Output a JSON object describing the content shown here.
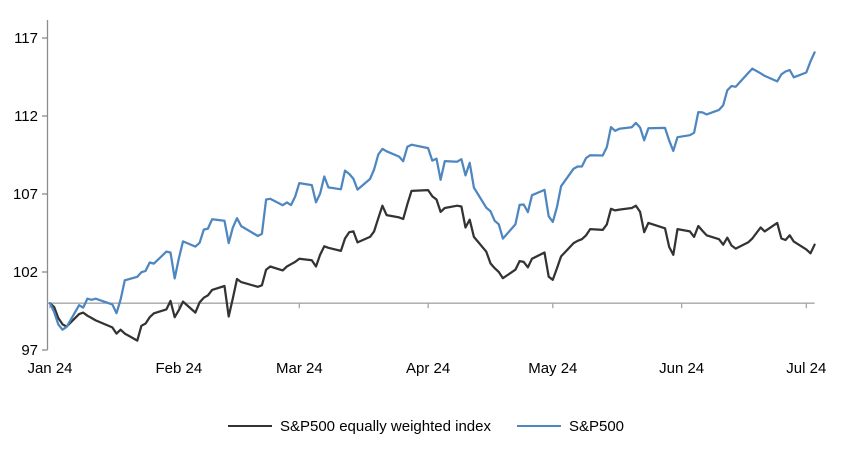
{
  "chart_data": {
    "type": "line",
    "title": "",
    "grid": "off",
    "legend_position": "bottom",
    "x_axis": {
      "tick_labels": [
        "Jan 24",
        "Feb 24",
        "Mar 24",
        "Apr 24",
        "May 24",
        "Jun 24",
        "Jul 24"
      ],
      "tick_dates": [
        "2024-01-01",
        "2024-02-01",
        "2024-03-01",
        "2024-04-01",
        "2024-05-01",
        "2024-06-01",
        "2024-07-01"
      ],
      "range_dates": [
        "2024-01-01",
        "2024-07-03"
      ]
    },
    "y_axis": {
      "tick_values": [
        97,
        102,
        107,
        112,
        117
      ],
      "min": 97,
      "max": 118.2
    },
    "reference_line_value": 100,
    "colors": {
      "sp500_equal_weight": "#333333",
      "sp500": "#4e86c0",
      "axis": "#8c8c8c",
      "reference_line": "#a6a6a6",
      "text": "#000000",
      "background": "#ffffff"
    },
    "dates": [
      "2024-01-01",
      "2024-01-02",
      "2024-01-03",
      "2024-01-04",
      "2024-01-05",
      "2024-01-08",
      "2024-01-09",
      "2024-01-10",
      "2024-01-11",
      "2024-01-12",
      "2024-01-16",
      "2024-01-17",
      "2024-01-18",
      "2024-01-19",
      "2024-01-22",
      "2024-01-23",
      "2024-01-24",
      "2024-01-25",
      "2024-01-26",
      "2024-01-29",
      "2024-01-30",
      "2024-01-31",
      "2024-02-01",
      "2024-02-02",
      "2024-02-05",
      "2024-02-06",
      "2024-02-07",
      "2024-02-08",
      "2024-02-09",
      "2024-02-12",
      "2024-02-13",
      "2024-02-14",
      "2024-02-15",
      "2024-02-16",
      "2024-02-20",
      "2024-02-21",
      "2024-02-22",
      "2024-02-23",
      "2024-02-26",
      "2024-02-27",
      "2024-02-28",
      "2024-02-29",
      "2024-03-01",
      "2024-03-04",
      "2024-03-05",
      "2024-03-06",
      "2024-03-07",
      "2024-03-08",
      "2024-03-11",
      "2024-03-12",
      "2024-03-13",
      "2024-03-14",
      "2024-03-15",
      "2024-03-18",
      "2024-03-19",
      "2024-03-20",
      "2024-03-21",
      "2024-03-22",
      "2024-03-25",
      "2024-03-26",
      "2024-03-27",
      "2024-03-28",
      "2024-04-01",
      "2024-04-02",
      "2024-04-03",
      "2024-04-04",
      "2024-04-05",
      "2024-04-08",
      "2024-04-09",
      "2024-04-10",
      "2024-04-11",
      "2024-04-12",
      "2024-04-15",
      "2024-04-16",
      "2024-04-17",
      "2024-04-18",
      "2024-04-19",
      "2024-04-22",
      "2024-04-23",
      "2024-04-24",
      "2024-04-25",
      "2024-04-26",
      "2024-04-29",
      "2024-04-30",
      "2024-05-01",
      "2024-05-02",
      "2024-05-03",
      "2024-05-06",
      "2024-05-07",
      "2024-05-08",
      "2024-05-09",
      "2024-05-10",
      "2024-05-13",
      "2024-05-14",
      "2024-05-15",
      "2024-05-16",
      "2024-05-17",
      "2024-05-20",
      "2024-05-21",
      "2024-05-22",
      "2024-05-23",
      "2024-05-24",
      "2024-05-28",
      "2024-05-29",
      "2024-05-30",
      "2024-05-31",
      "2024-06-03",
      "2024-06-04",
      "2024-06-05",
      "2024-06-06",
      "2024-06-07",
      "2024-06-10",
      "2024-06-11",
      "2024-06-12",
      "2024-06-13",
      "2024-06-14",
      "2024-06-17",
      "2024-06-18",
      "2024-06-20",
      "2024-06-21",
      "2024-06-24",
      "2024-06-25",
      "2024-06-26",
      "2024-06-27",
      "2024-06-28",
      "2024-07-01",
      "2024-07-02",
      "2024-07-03"
    ],
    "series": [
      {
        "name": "S&P500 equally weighted index",
        "color": "#333333",
        "values": [
          100,
          99.75,
          99.05,
          98.65,
          98.5,
          99.3,
          99.4,
          99.2,
          99.05,
          98.9,
          98.45,
          98.05,
          98.3,
          98.05,
          97.6,
          98.55,
          98.7,
          99.1,
          99.35,
          99.6,
          100.15,
          99.1,
          99.55,
          100.1,
          99.4,
          100.05,
          100.35,
          100.5,
          100.85,
          101.1,
          99.15,
          100.3,
          101.55,
          101.35,
          101.05,
          101.15,
          102.15,
          102.35,
          102.1,
          102.35,
          102.5,
          102.65,
          102.85,
          102.75,
          102.35,
          103.1,
          103.65,
          103.55,
          103.35,
          104.15,
          104.55,
          104.6,
          103.9,
          104.25,
          104.6,
          105.45,
          106.25,
          105.65,
          105.5,
          105.4,
          106.35,
          107.2,
          107.25,
          106.85,
          106.65,
          105.85,
          106.1,
          106.25,
          106.2,
          104.85,
          105.35,
          104.25,
          103.3,
          102.55,
          102.25,
          102.0,
          101.6,
          102.15,
          102.7,
          102.65,
          102.3,
          102.85,
          103.25,
          101.7,
          101.5,
          102.25,
          103.0,
          103.85,
          104.0,
          104.1,
          104.35,
          104.75,
          104.7,
          105.05,
          106.05,
          105.95,
          106.0,
          106.1,
          106.25,
          105.85,
          104.55,
          105.15,
          104.8,
          103.6,
          103.1,
          104.75,
          104.6,
          104.25,
          104.95,
          104.65,
          104.35,
          104.1,
          103.75,
          104.2,
          103.7,
          103.5,
          103.9,
          104.15,
          104.85,
          104.6,
          105.15,
          104.15,
          104.05,
          104.35,
          103.95,
          103.45,
          103.2,
          103.75
        ]
      },
      {
        "name": "S&P500",
        "color": "#4e86c0",
        "values": [
          100,
          99.43,
          98.64,
          98.3,
          98.48,
          99.87,
          99.72,
          100.29,
          100.22,
          100.29,
          99.92,
          99.36,
          100.23,
          101.47,
          101.69,
          101.99,
          102.07,
          102.61,
          102.54,
          103.31,
          103.25,
          101.59,
          102.86,
          103.96,
          103.63,
          103.87,
          104.72,
          104.78,
          105.38,
          105.28,
          103.85,
          104.84,
          105.45,
          104.94,
          104.31,
          104.44,
          106.65,
          106.69,
          106.28,
          106.46,
          106.29,
          106.84,
          107.7,
          107.57,
          106.47,
          107.02,
          108.12,
          107.42,
          107.3,
          108.5,
          108.29,
          107.98,
          107.28,
          107.96,
          108.57,
          109.53,
          109.89,
          109.74,
          109.4,
          109.1,
          110.03,
          110.16,
          109.94,
          109.14,
          109.26,
          107.91,
          109.11,
          109.07,
          109.23,
          108.19,
          109.0,
          107.41,
          106.12,
          105.9,
          105.29,
          105.06,
          104.14,
          105.05,
          106.3,
          106.33,
          105.84,
          106.92,
          107.26,
          105.57,
          105.21,
          106.17,
          107.5,
          108.62,
          108.76,
          108.76,
          109.31,
          109.49,
          109.47,
          110.0,
          111.29,
          111.05,
          111.18,
          111.28,
          111.56,
          111.26,
          110.44,
          111.21,
          111.24,
          110.42,
          109.76,
          110.64,
          110.77,
          110.93,
          112.25,
          112.23,
          112.1,
          112.39,
          112.69,
          113.65,
          113.92,
          113.87,
          114.75,
          115.04,
          114.74,
          114.57,
          114.22,
          114.67,
          114.85,
          114.95,
          114.48,
          114.79,
          115.5,
          116.08
        ]
      }
    ],
    "legend": [
      "S&P500 equally weighted index",
      "S&P500"
    ]
  }
}
